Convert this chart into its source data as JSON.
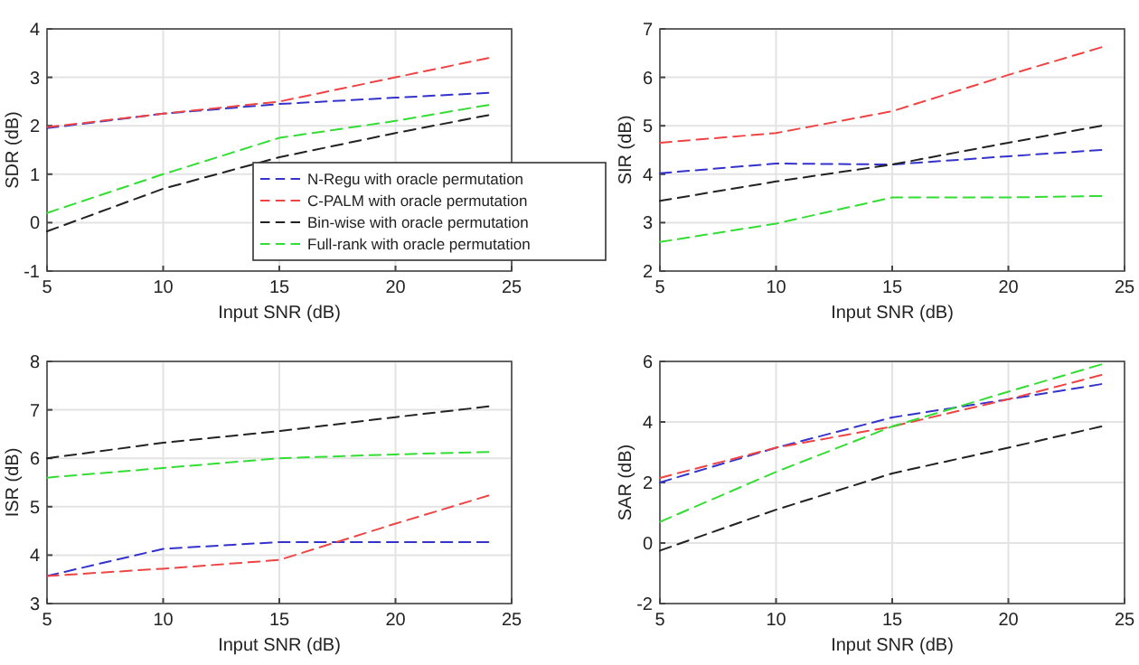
{
  "chart_data": [
    {
      "type": "line",
      "xlabel": "Input SNR (dB)",
      "ylabel": "SDR (dB)",
      "x": [
        5,
        10,
        15,
        20,
        24
      ],
      "xlim": [
        5,
        25
      ],
      "xticks": [
        5,
        10,
        15,
        20,
        25
      ],
      "ylim": [
        -1,
        4
      ],
      "yticks": [
        -1,
        0,
        1,
        2,
        3,
        4
      ],
      "grid": true,
      "line_style": "dashed",
      "legend": "bottom right",
      "series": [
        {
          "name": "N-Regu with oracle permutation",
          "color": "#3333cc",
          "values": [
            1.95,
            2.25,
            2.45,
            2.58,
            2.68
          ]
        },
        {
          "name": "C-PALM with oracle permutation",
          "color": "#ee4444",
          "values": [
            1.97,
            2.25,
            2.5,
            3.0,
            3.4
          ]
        },
        {
          "name": "Bin-wise with oracle permutation",
          "color": "#222222",
          "values": [
            -0.18,
            0.7,
            1.35,
            1.85,
            2.22
          ]
        },
        {
          "name": "Full-rank with oracle permutation",
          "color": "#33dd33",
          "values": [
            0.2,
            1.0,
            1.75,
            2.1,
            2.43
          ]
        }
      ]
    },
    {
      "type": "line",
      "xlabel": "Input SNR (dB)",
      "ylabel": "SIR (dB)",
      "x": [
        5,
        10,
        15,
        20,
        24
      ],
      "xlim": [
        5,
        25
      ],
      "xticks": [
        5,
        10,
        15,
        20,
        25
      ],
      "ylim": [
        2,
        7
      ],
      "yticks": [
        2,
        3,
        4,
        5,
        6,
        7
      ],
      "grid": true,
      "line_style": "dashed",
      "series": [
        {
          "color": "#3333cc",
          "values": [
            4.02,
            4.22,
            4.2,
            4.37,
            4.5
          ]
        },
        {
          "color": "#ee4444",
          "values": [
            4.65,
            4.85,
            5.3,
            6.05,
            6.62
          ]
        },
        {
          "color": "#222222",
          "values": [
            3.45,
            3.85,
            4.2,
            4.65,
            5.0
          ]
        },
        {
          "color": "#33dd33",
          "values": [
            2.6,
            2.98,
            3.52,
            3.52,
            3.55
          ]
        }
      ]
    },
    {
      "type": "line",
      "xlabel": "Input SNR (dB)",
      "ylabel": "ISR (dB)",
      "x": [
        5,
        10,
        15,
        20,
        24
      ],
      "xlim": [
        5,
        25
      ],
      "xticks": [
        5,
        10,
        15,
        20,
        25
      ],
      "ylim": [
        3,
        8
      ],
      "yticks": [
        3,
        4,
        5,
        6,
        7,
        8
      ],
      "grid": true,
      "line_style": "dashed",
      "series": [
        {
          "color": "#3333cc",
          "values": [
            3.57,
            4.13,
            4.27,
            4.27,
            4.27
          ]
        },
        {
          "color": "#ee4444",
          "values": [
            3.57,
            3.72,
            3.9,
            4.65,
            5.23
          ]
        },
        {
          "color": "#222222",
          "values": [
            6.0,
            6.32,
            6.56,
            6.85,
            7.07
          ]
        },
        {
          "color": "#33dd33",
          "values": [
            5.6,
            5.8,
            6.0,
            6.08,
            6.13
          ]
        }
      ]
    },
    {
      "type": "line",
      "xlabel": "Input SNR (dB)",
      "ylabel": "SAR (dB)",
      "x": [
        5,
        10,
        15,
        20,
        24
      ],
      "xlim": [
        5,
        25
      ],
      "xticks": [
        5,
        10,
        15,
        20,
        25
      ],
      "ylim": [
        -2,
        6
      ],
      "yticks": [
        -2,
        0,
        2,
        4,
        6
      ],
      "grid": true,
      "line_style": "dashed",
      "series": [
        {
          "color": "#3333cc",
          "values": [
            2.0,
            3.15,
            4.15,
            4.75,
            5.25
          ]
        },
        {
          "color": "#ee4444",
          "values": [
            2.15,
            3.15,
            3.85,
            4.75,
            5.55
          ]
        },
        {
          "color": "#222222",
          "values": [
            -0.25,
            1.1,
            2.3,
            3.15,
            3.85
          ]
        },
        {
          "color": "#33dd33",
          "values": [
            0.7,
            2.35,
            3.85,
            5.0,
            5.9
          ]
        }
      ]
    }
  ]
}
